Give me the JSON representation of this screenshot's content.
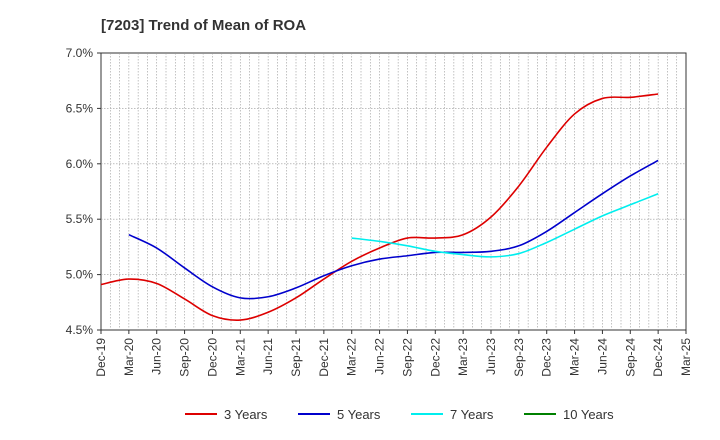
{
  "chart_data": {
    "type": "line",
    "title": "[7203]  Trend of Mean of ROA",
    "xlabel": "",
    "ylabel": "",
    "ylim": [
      4.5,
      7.0
    ],
    "y_ticks": [
      "7.0%",
      "6.5%",
      "6.0%",
      "5.5%",
      "5.0%",
      "4.5%"
    ],
    "y_tick_values": [
      7.0,
      6.5,
      6.0,
      5.5,
      5.0,
      4.5
    ],
    "categories": [
      "Dec-19",
      "Mar-20",
      "Jun-20",
      "Sep-20",
      "Dec-20",
      "Mar-21",
      "Jun-21",
      "Sep-21",
      "Dec-21",
      "Mar-22",
      "Jun-22",
      "Sep-22",
      "Dec-22",
      "Mar-23",
      "Jun-23",
      "Sep-23",
      "Dec-23",
      "Mar-24",
      "Jun-24",
      "Sep-24",
      "Dec-24",
      "Mar-25"
    ],
    "grid": true,
    "legend_position": "bottom",
    "series": [
      {
        "name": "3 Years",
        "color": "#dd0000",
        "values": [
          4.91,
          4.96,
          4.92,
          4.78,
          4.63,
          4.59,
          4.66,
          4.79,
          4.96,
          5.12,
          5.24,
          5.33,
          5.33,
          5.36,
          5.52,
          5.8,
          6.15,
          6.45,
          6.59,
          6.6,
          6.63,
          null
        ]
      },
      {
        "name": "5 Years",
        "color": "#0000cc",
        "values": [
          null,
          5.36,
          5.24,
          5.06,
          4.89,
          4.79,
          4.8,
          4.88,
          4.99,
          5.08,
          5.14,
          5.17,
          5.2,
          5.2,
          5.21,
          5.26,
          5.39,
          5.56,
          5.73,
          5.89,
          6.03,
          null
        ]
      },
      {
        "name": "7 Years",
        "color": "#00eeee",
        "values": [
          null,
          null,
          null,
          null,
          null,
          null,
          null,
          null,
          null,
          5.33,
          5.3,
          5.26,
          5.21,
          5.18,
          5.16,
          5.19,
          5.29,
          5.41,
          5.53,
          5.63,
          5.73,
          null
        ]
      },
      {
        "name": "10 Years",
        "color": "#008000",
        "values": [
          null,
          null,
          null,
          null,
          null,
          null,
          null,
          null,
          null,
          null,
          null,
          null,
          null,
          null,
          null,
          null,
          null,
          null,
          null,
          null,
          null,
          null
        ]
      }
    ]
  }
}
